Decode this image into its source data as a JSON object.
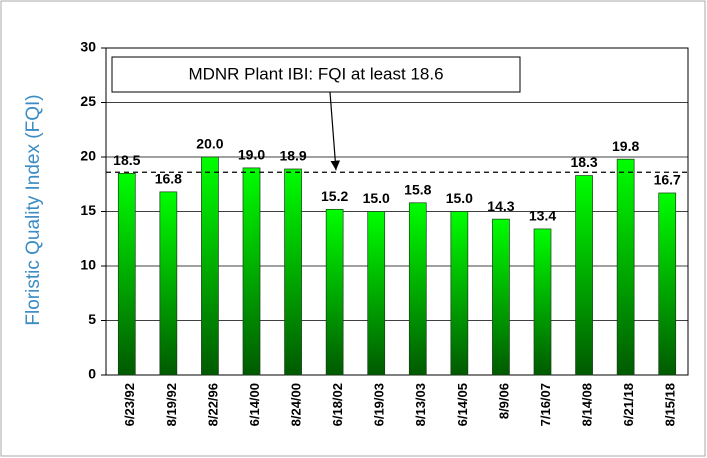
{
  "chart_data": {
    "type": "bar",
    "y_axis_label": "Floristic Quality Index (FQI)",
    "categories": [
      "6/23/92",
      "8/19/92",
      "8/22/96",
      "6/14/00",
      "8/24/00",
      "6/18/02",
      "6/19/03",
      "8/13/03",
      "6/14/05",
      "8/9/06",
      "7/16/07",
      "8/14/08",
      "6/21/18",
      "8/15/18"
    ],
    "values": [
      18.5,
      16.8,
      20.0,
      19.0,
      18.9,
      15.2,
      15.0,
      15.8,
      15.0,
      14.3,
      13.4,
      18.3,
      19.8,
      16.7
    ],
    "value_labels": [
      "18.5",
      "16.8",
      "20.0",
      "19.0",
      "18.9",
      "15.2",
      "15.0",
      "15.8",
      "15.0",
      "14.3",
      "13.4",
      "18.3",
      "19.8",
      "16.7"
    ],
    "color": "#00ff00",
    "ylim": [
      0,
      30
    ],
    "yticks": [
      0,
      5,
      10,
      15,
      20,
      25,
      30
    ],
    "grid": true,
    "reference_line": {
      "value": 18.6,
      "label": "MDNR Plant IBI: FQI at least 18.6"
    }
  }
}
